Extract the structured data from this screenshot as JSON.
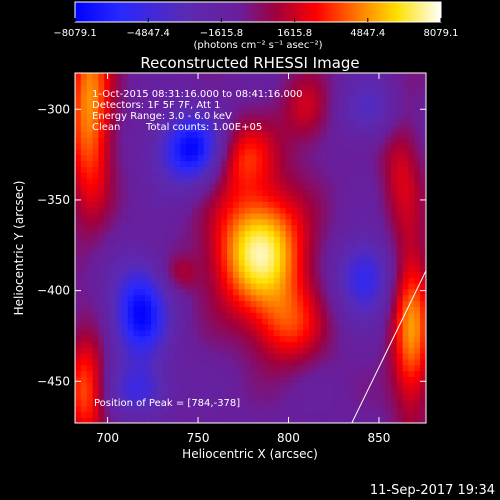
{
  "chart_data": {
    "type": "heatmap",
    "title": "Reconstructed RHESSI Image",
    "xlabel": "Heliocentric X (arcsec)",
    "ylabel": "Heliocentric Y (arcsec)",
    "xlim": [
      682,
      876
    ],
    "ylim": [
      -473,
      -280
    ],
    "x_ticks": [
      700,
      750,
      800,
      850
    ],
    "y_ticks": [
      -300,
      -350,
      -400,
      -450
    ],
    "colorbar": {
      "ticks": [
        -8079.1,
        -4847.4,
        -1615.8,
        1615.8,
        4847.4,
        8079.1
      ],
      "tick_labels": [
        "−8079.1",
        "−4847.4",
        "−1615.8",
        "1615.8",
        "4847.4",
        "8079.1"
      ],
      "units": "(photons cm⁻² s⁻¹ asec⁻²)",
      "range": [
        -8079.1,
        8079.1
      ]
    },
    "annotations": {
      "time_range": "1-Oct-2015 08:31:16.000 to 08:41:16.000",
      "detectors": "Detectors: 1F 5F 7F, Att 1",
      "energy": "Energy Range: 3.0 - 6.0 keV",
      "method": "Clean",
      "counts": "Total counts: 1.00E+05",
      "peak": "Position of Peak = [784,-378]"
    },
    "peak": {
      "x": 784,
      "y": -378,
      "value": 8079.1
    },
    "sources": [
      {
        "kind": "positive",
        "x": 784,
        "y": -378,
        "sx": 18,
        "sy": 24,
        "amp": 8079.1
      },
      {
        "kind": "positive",
        "x": 772,
        "y": -325,
        "sx": 14,
        "sy": 14,
        "amp": 4500
      },
      {
        "kind": "positive",
        "x": 800,
        "y": -420,
        "sx": 14,
        "sy": 16,
        "amp": 3500
      },
      {
        "kind": "positive",
        "x": 690,
        "y": -300,
        "sx": 9,
        "sy": 40,
        "amp": 5800
      },
      {
        "kind": "positive",
        "x": 688,
        "y": -455,
        "sx": 8,
        "sy": 22,
        "amp": 4800
      },
      {
        "kind": "positive",
        "x": 868,
        "y": -420,
        "sx": 8,
        "sy": 35,
        "amp": 5600
      },
      {
        "kind": "positive",
        "x": 810,
        "y": -300,
        "sx": 10,
        "sy": 14,
        "amp": 2800
      },
      {
        "kind": "positive",
        "x": 862,
        "y": -330,
        "sx": 8,
        "sy": 25,
        "amp": 2600
      },
      {
        "kind": "positive",
        "x": 740,
        "y": -390,
        "sx": 7,
        "sy": 7,
        "amp": 1900
      },
      {
        "kind": "negative",
        "x": 748,
        "y": -322,
        "sx": 14,
        "sy": 14,
        "amp": -7600
      },
      {
        "kind": "negative",
        "x": 718,
        "y": -412,
        "sx": 11,
        "sy": 19,
        "amp": -6800
      },
      {
        "kind": "negative",
        "x": 842,
        "y": -392,
        "sx": 11,
        "sy": 15,
        "amp": -4800
      },
      {
        "kind": "negative",
        "x": 718,
        "y": -455,
        "sx": 12,
        "sy": 10,
        "amp": -3600
      },
      {
        "kind": "negative",
        "x": 845,
        "y": -300,
        "sx": 12,
        "sy": 12,
        "amp": -3000
      }
    ],
    "limb_line": {
      "points": [
        [
          835,
          -473
        ],
        [
          876,
          -389
        ]
      ]
    }
  },
  "footer": {
    "timestamp": "11-Sep-2017 19:34"
  }
}
